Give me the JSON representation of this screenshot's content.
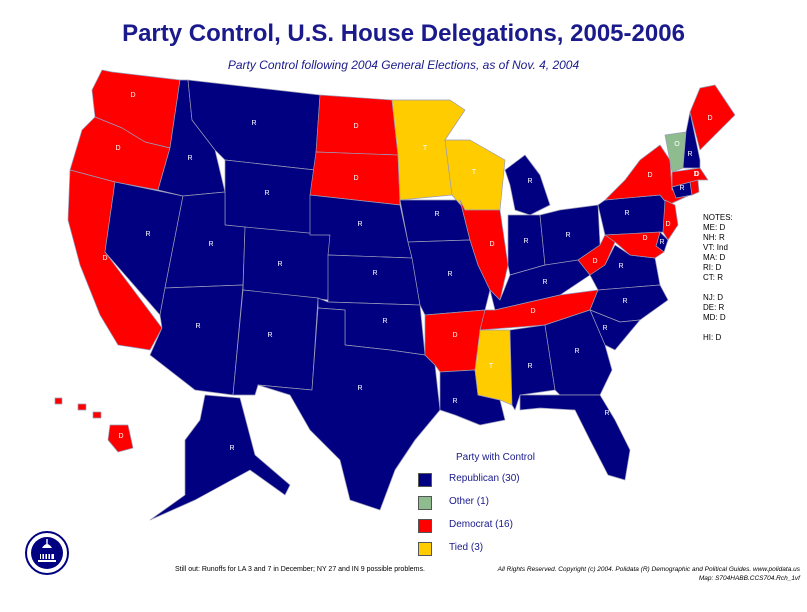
{
  "title": "Party Control, U.S. House Delegations, 2005-2006",
  "subtitle": "Party Control following 2004 General Elections, as of Nov. 4, 2004",
  "colors": {
    "republican": "#000080",
    "democrat": "#ff0000",
    "other": "#8fbc8f",
    "tied": "#ffcc00",
    "border": "#9a9ab8",
    "water": "#ffffff"
  },
  "states": {
    "WA": "D",
    "OR": "D",
    "CA": "D",
    "NV": "R",
    "ID": "R",
    "MT": "R",
    "WY": "R",
    "UT": "R",
    "AZ": "R",
    "CO": "R",
    "NM": "R",
    "ND": "D",
    "SD": "D",
    "NE": "R",
    "KS": "R",
    "OK": "R",
    "TX": "R",
    "MN": "T",
    "IA": "R",
    "MO": "R",
    "AR": "D",
    "LA": "R",
    "WI": "T",
    "IL": "D",
    "MS": "T",
    "MI": "R",
    "IN": "R",
    "KY": "R",
    "TN": "D",
    "AL": "R",
    "OH": "R",
    "WV": "D",
    "VA": "R",
    "NC": "R",
    "SC": "R",
    "GA": "R",
    "FL": "R",
    "PA": "R",
    "NY": "D",
    "NJ": "D",
    "DE": "R",
    "MD": "D",
    "CT": "R",
    "RI": "D",
    "MA": "D",
    "VT": "O",
    "NH": "R",
    "ME": "D",
    "AK": "R",
    "HI": "D"
  },
  "notes": [
    "NOTES:",
    "ME: D",
    "NH: R",
    "VT: Ind",
    "MA: D",
    "RI: D",
    "CT: R",
    "",
    "NJ: D",
    "DE: R",
    "MD: D",
    "",
    "HI: D"
  ],
  "legend": {
    "title": "Party with Control",
    "items": [
      {
        "key": "republican",
        "label": "Republican (30)"
      },
      {
        "key": "other",
        "label": "Other (1)"
      },
      {
        "key": "democrat",
        "label": "Democrat (16)"
      },
      {
        "key": "tied",
        "label": "Tied (3)"
      }
    ]
  },
  "footnote": "Still out: Runoffs for LA 3 and 7 in December; NY 27 and IN 9 possible problems.",
  "copyright": [
    "All Rights Reserved. Copyright (c) 2004. Polidata (R) Demographic and Political Guides. www.polidata.us",
    "Map: S704HABB.CCS704.Rch_1vf"
  ]
}
